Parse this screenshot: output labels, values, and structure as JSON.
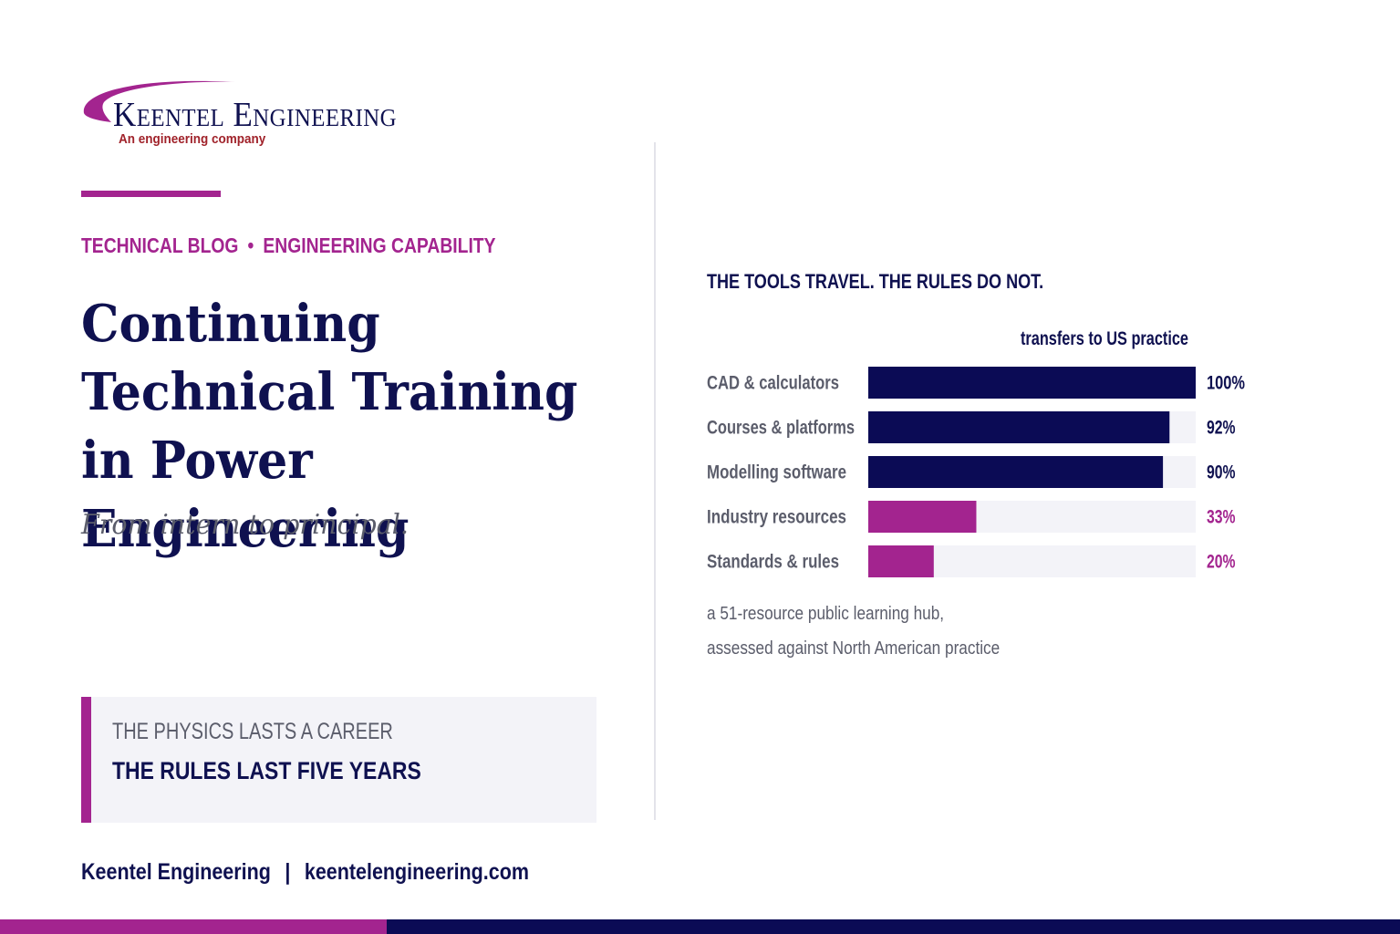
{
  "brand": {
    "name": "Keentel Engineering",
    "tagline": "An engineering company"
  },
  "header": {
    "category": "TECHNICAL BLOG",
    "separator": "•",
    "topic": "ENGINEERING CAPABILITY"
  },
  "article": {
    "title": "Continuing Technical Training in Power Engineering",
    "subtitle": "From intern to principal."
  },
  "callout": {
    "line1": "THE PHYSICS LASTS A CAREER",
    "line2": "THE RULES LAST FIVE YEARS"
  },
  "footer": {
    "company": "Keentel Engineering",
    "separator": "|",
    "website": "keentelengineering.com"
  },
  "chart_heading": "THE TOOLS TRAVEL. THE RULES DO NOT.",
  "chart_data": {
    "type": "bar",
    "orientation": "horizontal",
    "value_header": "transfers to US practice",
    "categories": [
      "CAD & calculators",
      "Courses & platforms",
      "Modelling software",
      "Industry resources",
      "Standards & rules"
    ],
    "values": [
      100,
      92,
      90,
      33,
      20
    ],
    "value_labels": [
      "100%",
      "92%",
      "90%",
      "33%",
      "20%"
    ],
    "xlim": [
      0,
      100
    ],
    "colors": [
      "#0b0b55",
      "#0b0b55",
      "#0b0b55",
      "#a3248f",
      "#a3248f"
    ],
    "track_color": "#f3f3f8",
    "grid": false
  },
  "note": {
    "line1": "a 51-resource public learning hub,",
    "line2": "assessed against North American practice"
  },
  "colors": {
    "navy": "#0f1150",
    "magenta": "#a3248f",
    "gray_text": "#5b5d6b",
    "panel": "#f3f3f8"
  }
}
